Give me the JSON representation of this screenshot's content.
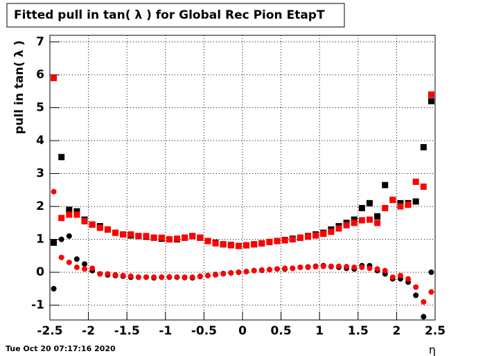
{
  "chart_data": {
    "type": "scatter",
    "title": "Fitted pull in tan( λ ) for Global Rec Pion EtapT",
    "ylabel": "pull in tan( λ )",
    "xlabel": "η",
    "footer": "Tue Oct 20 07:17:16 2020",
    "xlim": [
      -2.5,
      2.5
    ],
    "ylim": [
      -1.45,
      7.2
    ],
    "xticks": [
      -2.5,
      -2,
      -1.5,
      -1,
      -0.5,
      0,
      0.5,
      1,
      1.5,
      2,
      2.5
    ],
    "yticks": [
      -1,
      0,
      1,
      2,
      3,
      4,
      5,
      6,
      7
    ],
    "grid": true,
    "x": [
      -2.45,
      -2.35,
      -2.25,
      -2.15,
      -2.05,
      -1.95,
      -1.85,
      -1.75,
      -1.65,
      -1.55,
      -1.45,
      -1.35,
      -1.25,
      -1.15,
      -1.05,
      -0.95,
      -0.85,
      -0.75,
      -0.65,
      -0.55,
      -0.45,
      -0.35,
      -0.25,
      -0.15,
      -0.05,
      0.05,
      0.15,
      0.25,
      0.35,
      0.45,
      0.55,
      0.65,
      0.75,
      0.85,
      0.95,
      1.05,
      1.15,
      1.25,
      1.35,
      1.45,
      1.55,
      1.65,
      1.75,
      1.85,
      1.95,
      2.05,
      2.15,
      2.25,
      2.35,
      2.45
    ],
    "series": [
      {
        "color": "#000000",
        "marker": "square",
        "values": [
          0.9,
          3.5,
          1.9,
          1.85,
          1.6,
          1.45,
          1.4,
          1.3,
          1.2,
          1.15,
          1.12,
          1.1,
          1.08,
          1.05,
          1.02,
          1.0,
          1.0,
          1.05,
          1.1,
          1.05,
          0.95,
          0.9,
          0.85,
          0.83,
          0.8,
          0.82,
          0.85,
          0.88,
          0.92,
          0.95,
          0.98,
          1.02,
          1.05,
          1.1,
          1.15,
          1.2,
          1.3,
          1.4,
          1.5,
          1.6,
          1.95,
          2.1,
          1.7,
          2.65,
          2.2,
          2.1,
          2.1,
          2.15,
          3.8,
          5.2
        ]
      },
      {
        "color": "#000000",
        "marker": "circle",
        "values": [
          -0.5,
          1.0,
          1.1,
          0.4,
          0.25,
          0.05,
          -0.05,
          -0.08,
          -0.1,
          -0.12,
          -0.15,
          -0.15,
          -0.15,
          -0.17,
          -0.15,
          -0.15,
          -0.15,
          -0.16,
          -0.17,
          -0.13,
          -0.1,
          -0.07,
          -0.04,
          -0.02,
          0.0,
          0.02,
          0.05,
          0.06,
          0.08,
          0.1,
          0.1,
          0.12,
          0.15,
          0.16,
          0.18,
          0.2,
          0.17,
          0.15,
          0.12,
          0.1,
          0.2,
          0.2,
          0.05,
          -0.05,
          -0.2,
          -0.2,
          -0.3,
          -0.7,
          -1.35,
          0.0
        ]
      },
      {
        "color": "#ff0000",
        "marker": "square",
        "values": [
          5.9,
          1.65,
          1.75,
          1.75,
          1.55,
          1.45,
          1.35,
          1.3,
          1.2,
          1.15,
          1.15,
          1.1,
          1.1,
          1.05,
          1.05,
          1.0,
          1.02,
          1.05,
          1.1,
          1.05,
          0.95,
          0.88,
          0.85,
          0.82,
          0.8,
          0.82,
          0.85,
          0.88,
          0.92,
          0.95,
          0.97,
          1.0,
          1.05,
          1.08,
          1.12,
          1.17,
          1.23,
          1.33,
          1.43,
          1.5,
          1.58,
          1.6,
          1.5,
          1.95,
          2.2,
          2.0,
          2.05,
          2.75,
          2.6,
          5.4
        ]
      },
      {
        "color": "#ff0000",
        "marker": "circle",
        "values": [
          2.45,
          0.45,
          0.3,
          0.15,
          0.1,
          0.12,
          -0.05,
          -0.05,
          -0.08,
          -0.1,
          -0.12,
          -0.15,
          -0.15,
          -0.15,
          -0.15,
          -0.14,
          -0.15,
          -0.15,
          -0.15,
          -0.12,
          -0.1,
          -0.08,
          -0.05,
          -0.02,
          0.0,
          0.02,
          0.05,
          0.07,
          0.08,
          0.1,
          0.12,
          0.12,
          0.15,
          0.15,
          0.17,
          0.18,
          0.18,
          0.18,
          0.17,
          0.15,
          0.15,
          0.12,
          0.1,
          0.05,
          -0.15,
          -0.1,
          -0.2,
          -0.45,
          -0.9,
          -0.6
        ]
      }
    ]
  }
}
